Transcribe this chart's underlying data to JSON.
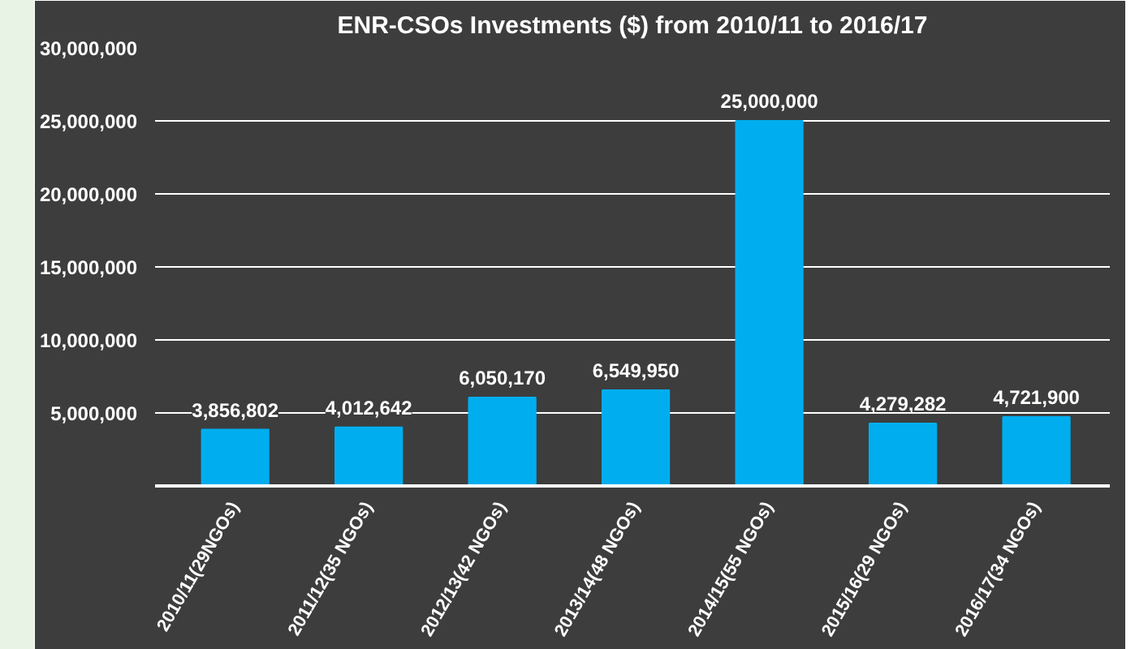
{
  "chart_data": {
    "type": "bar",
    "title": "ENR-CSOs Investments ($) from 2010/11 to 2016/17",
    "categories": [
      "2010/11(29NGOs)",
      "2011/12(35 NGOs)",
      "2012/13(42 NGOs)",
      "2013/14(48 NGOs)",
      "2014/15(55 NGOs)",
      "2015/16(29 NGOs)",
      "2016/17(34 NGOs)"
    ],
    "values": [
      3856802,
      4012642,
      6050170,
      6549950,
      25000000,
      4279282,
      4721900
    ],
    "color": "#00aeef",
    "ylim": [
      0,
      30000000
    ],
    "yticks": [
      {
        "value": 5000000,
        "label": "5,000,000"
      },
      {
        "value": 10000000,
        "label": "10,000,000"
      },
      {
        "value": 15000000,
        "label": "15,000,000"
      },
      {
        "value": 20000000,
        "label": "20,000,000"
      },
      {
        "value": 25000000,
        "label": "25,000,000"
      },
      {
        "value": 30000000,
        "label": "30,000,000"
      }
    ],
    "value_labels": [
      "3,856,802",
      "4,012,642",
      "6,050,170",
      "6,549,950",
      "25,000,000",
      "4,279,282",
      "4,721,900"
    ],
    "grid": "y"
  }
}
